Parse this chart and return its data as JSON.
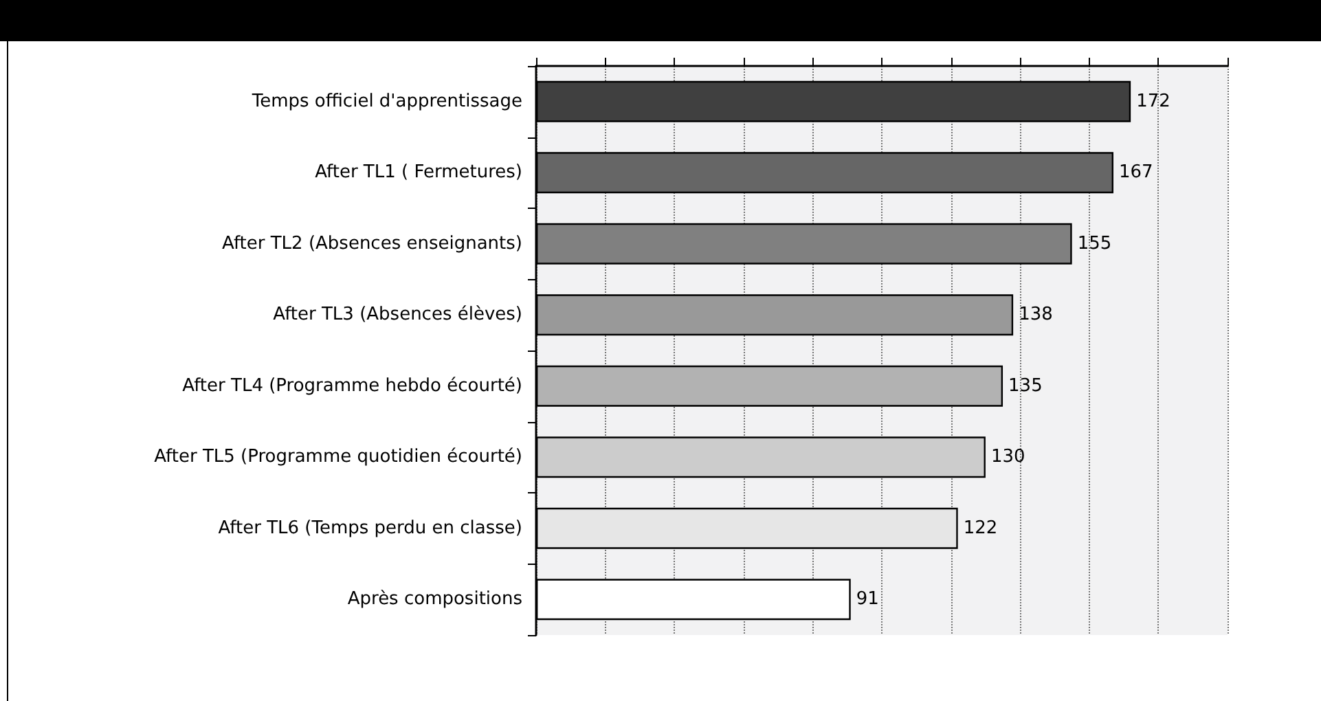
{
  "chart_data": {
    "type": "bar",
    "orientation": "horizontal",
    "categories": [
      "Temps officiel d'apprentissage",
      "After TL1 ( Fermetures)",
      "After TL2 (Absences enseignants)",
      "After TL3 (Absences élèves)",
      "After TL4 (Programme hebdo écourté)",
      "After TL5 (Programme quotidien écourté)",
      "After TL6 (Temps perdu en classe)",
      "Après compositions"
    ],
    "values": [
      172,
      167,
      155,
      138,
      135,
      130,
      122,
      91
    ],
    "colors": [
      "#404040",
      "#666666",
      "#808080",
      "#999999",
      "#b2b2b2",
      "#cccccc",
      "#e6e6e6",
      "#ffffff"
    ],
    "xlim": [
      0,
      200
    ],
    "xticks": [
      {
        "value": 0,
        "label": null
      },
      {
        "value": 20,
        "label": null
      },
      {
        "value": 40,
        "label": null
      },
      {
        "value": 60,
        "label": null
      },
      {
        "value": 80,
        "label": null
      },
      {
        "value": 100,
        "label": null
      },
      {
        "value": 120,
        "label": null
      },
      {
        "value": 140,
        "label": null
      },
      {
        "value": 160,
        "label": null
      },
      {
        "value": 180,
        "label": null
      },
      {
        "value": 200,
        "label": null
      }
    ],
    "tick_labels": "y",
    "grid": "x",
    "data_labels": true
  }
}
